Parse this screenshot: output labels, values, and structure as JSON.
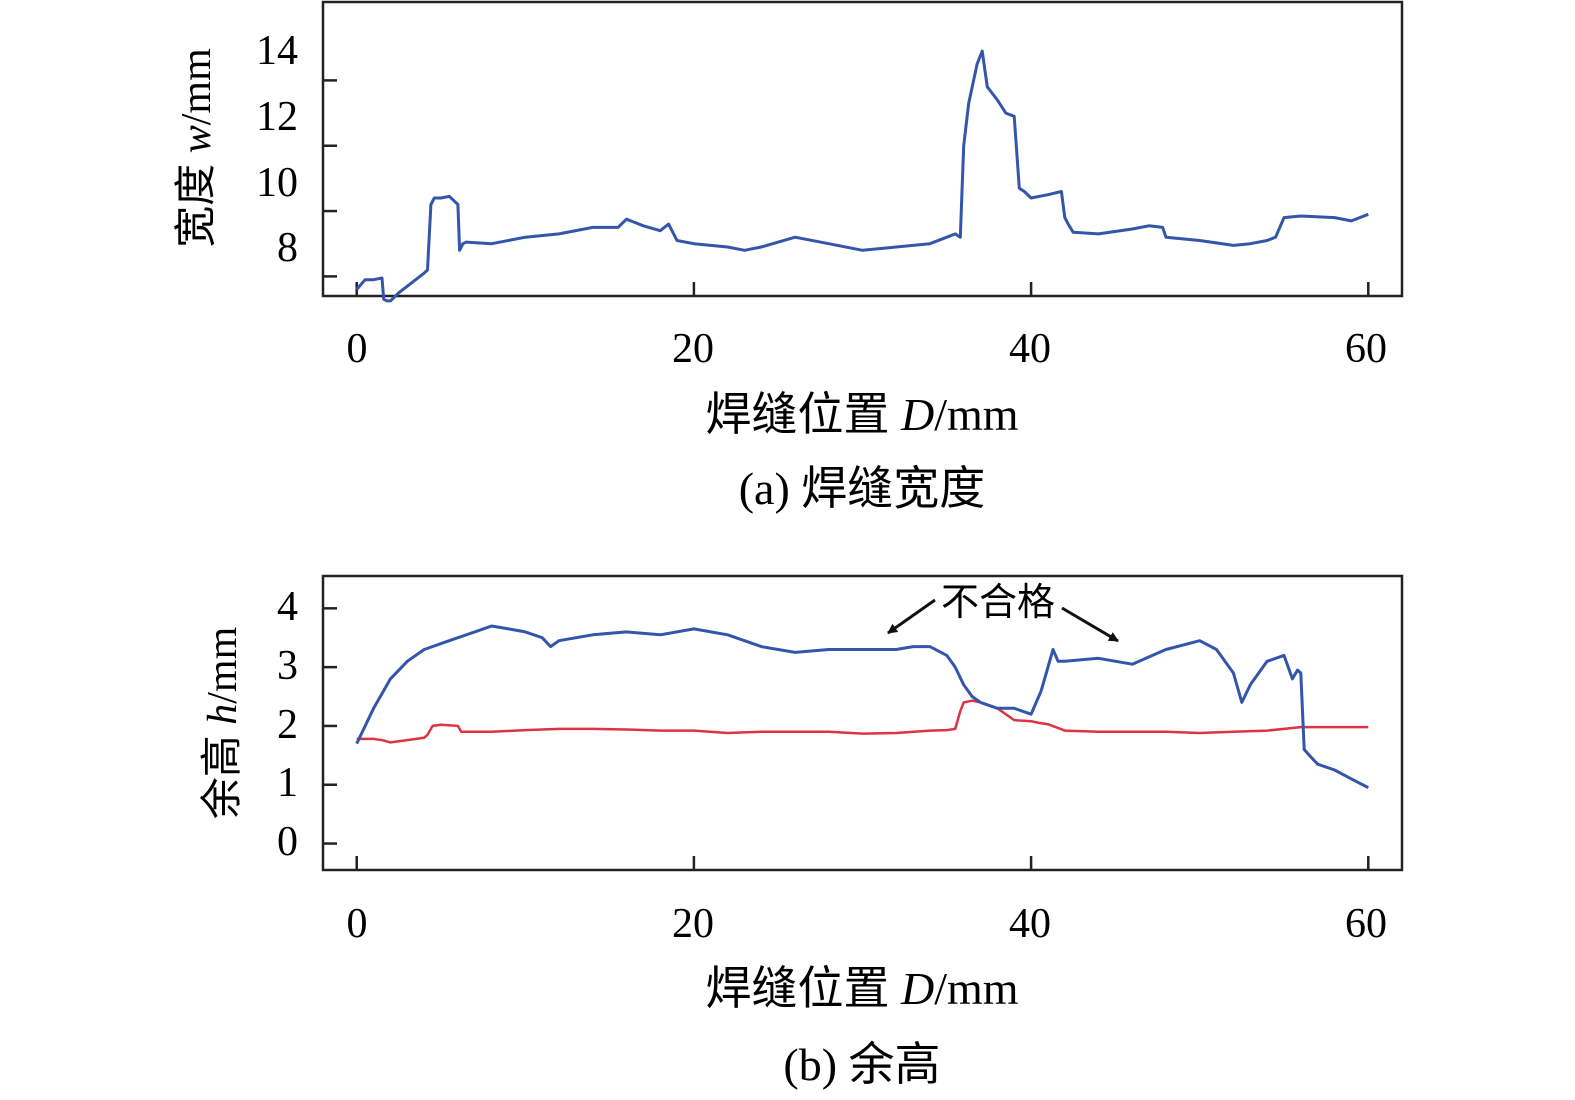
{
  "figure": {
    "panels": [
      {
        "caption": "(a) 焊缝宽度",
        "ylabel_prefix": "宽度 ",
        "ylabel_var": "w",
        "ylabel_unit": "/mm",
        "xlabel_prefix": "焊缝位置 ",
        "xlabel_var": "D",
        "xlabel_unit": "/mm",
        "xticks": [
          "0",
          "20",
          "40",
          "60"
        ],
        "yticks": [
          "8",
          "10",
          "12",
          "14"
        ]
      },
      {
        "caption": "(b) 余高",
        "ylabel_prefix": "余高 ",
        "ylabel_var": "h",
        "ylabel_unit": "/mm",
        "xlabel_prefix": "焊缝位置 ",
        "xlabel_var": "D",
        "xlabel_unit": "/mm",
        "xticks": [
          "0",
          "20",
          "40",
          "60"
        ],
        "yticks": [
          "0",
          "1",
          "2",
          "3",
          "4"
        ],
        "annotation": "不合格"
      }
    ]
  },
  "colors": {
    "blue": "#3355aa",
    "red": "#dd3344",
    "axis": "#222222"
  },
  "chart_data": [
    {
      "type": "line",
      "xlabel": "焊缝位置 D/mm",
      "ylabel": "宽度 w/mm",
      "xlim": [
        -2,
        62
      ],
      "ylim": [
        7.4,
        16.4
      ],
      "series": [
        {
          "color": "#3355aa",
          "x": [
            0,
            0.5,
            1,
            1.5,
            1.6,
            1.8,
            2,
            2.5,
            3,
            3.5,
            4,
            4.2,
            4.4,
            4.6,
            5,
            5.5,
            6,
            6.1,
            6.3,
            6.5,
            8,
            10,
            12,
            14,
            15.5,
            16,
            17,
            18,
            18.5,
            19,
            20,
            22,
            23,
            24,
            26,
            28,
            30,
            32,
            34,
            35,
            35.5,
            35.8,
            36,
            36.3,
            36.8,
            37.1,
            37.4,
            38,
            38.5,
            39,
            39.3,
            39.6,
            40,
            41,
            41.8,
            42,
            42.2,
            42.5,
            44,
            46,
            47,
            47.8,
            48,
            50,
            52,
            53,
            54,
            54.5,
            55,
            56,
            58,
            59,
            60
          ],
          "y": [
            7.6,
            7.9,
            7.9,
            7.95,
            7.3,
            7.25,
            7.25,
            7.5,
            7.7,
            7.9,
            8.1,
            8.2,
            10.2,
            10.4,
            10.4,
            10.45,
            10.2,
            8.8,
            9.0,
            9.05,
            9.0,
            9.2,
            9.3,
            9.5,
            9.5,
            9.75,
            9.55,
            9.4,
            9.6,
            9.1,
            9.0,
            8.9,
            8.8,
            8.9,
            9.2,
            9.0,
            8.8,
            8.9,
            9.0,
            9.2,
            9.3,
            9.2,
            12.0,
            13.3,
            14.5,
            14.9,
            13.8,
            13.4,
            13.0,
            12.9,
            10.7,
            10.6,
            10.4,
            10.5,
            10.6,
            9.8,
            9.6,
            9.35,
            9.3,
            9.45,
            9.55,
            9.5,
            9.2,
            9.1,
            8.95,
            9.0,
            9.1,
            9.2,
            9.8,
            9.85,
            9.8,
            9.7,
            9.9
          ]
        }
      ]
    },
    {
      "type": "line",
      "xlabel": "焊缝位置 D/mm",
      "ylabel": "余高 h/mm",
      "xlim": [
        -2,
        62
      ],
      "ylim": [
        -0.45,
        4.55
      ],
      "annotations": [
        {
          "text": "不合格"
        }
      ],
      "series": [
        {
          "color": "#3355aa",
          "x": [
            0,
            1,
            2,
            3,
            4,
            5,
            6,
            7,
            8,
            9,
            10,
            11,
            11.5,
            12,
            14,
            16,
            18,
            20,
            22,
            23,
            24,
            26,
            28,
            30,
            32,
            33,
            34,
            35,
            35.5,
            36,
            36.5,
            37,
            38,
            39,
            40,
            40.3,
            40.6,
            41,
            41.3,
            41.6,
            42,
            44,
            46,
            48,
            50,
            51,
            52,
            52.5,
            53,
            54,
            55,
            55.5,
            55.8,
            56,
            56.2,
            56.5,
            57,
            58,
            59,
            60
          ],
          "y": [
            1.7,
            2.3,
            2.8,
            3.1,
            3.3,
            3.4,
            3.5,
            3.6,
            3.7,
            3.65,
            3.6,
            3.5,
            3.35,
            3.45,
            3.55,
            3.6,
            3.55,
            3.65,
            3.55,
            3.45,
            3.35,
            3.25,
            3.3,
            3.3,
            3.3,
            3.35,
            3.35,
            3.2,
            3.0,
            2.7,
            2.5,
            2.4,
            2.3,
            2.3,
            2.2,
            2.4,
            2.6,
            3.0,
            3.3,
            3.1,
            3.1,
            3.15,
            3.05,
            3.3,
            3.45,
            3.3,
            2.9,
            2.4,
            2.7,
            3.1,
            3.2,
            2.8,
            2.95,
            2.9,
            1.6,
            1.5,
            1.35,
            1.25,
            1.1,
            0.95
          ]
        },
        {
          "color": "#dd3344",
          "x": [
            0,
            1,
            1.5,
            2,
            3,
            4,
            4.2,
            4.5,
            5,
            6,
            6.2,
            6.5,
            8,
            10,
            12,
            14,
            16,
            18,
            20,
            22,
            24,
            26,
            28,
            30,
            32,
            34,
            35,
            35.5,
            35.8,
            36,
            36.5,
            37,
            38,
            39,
            40,
            40.5,
            41,
            42,
            44,
            46,
            48,
            50,
            52,
            54,
            55,
            56,
            58,
            60
          ],
          "y": [
            1.78,
            1.78,
            1.76,
            1.72,
            1.76,
            1.8,
            1.85,
            2.0,
            2.02,
            2.0,
            1.9,
            1.9,
            1.9,
            1.93,
            1.95,
            1.95,
            1.94,
            1.92,
            1.92,
            1.88,
            1.9,
            1.9,
            1.9,
            1.87,
            1.88,
            1.92,
            1.93,
            1.95,
            2.25,
            2.4,
            2.43,
            2.4,
            2.3,
            2.1,
            2.08,
            2.05,
            2.03,
            1.92,
            1.9,
            1.9,
            1.9,
            1.88,
            1.9,
            1.92,
            1.95,
            1.98,
            1.98,
            1.98
          ]
        }
      ]
    }
  ]
}
